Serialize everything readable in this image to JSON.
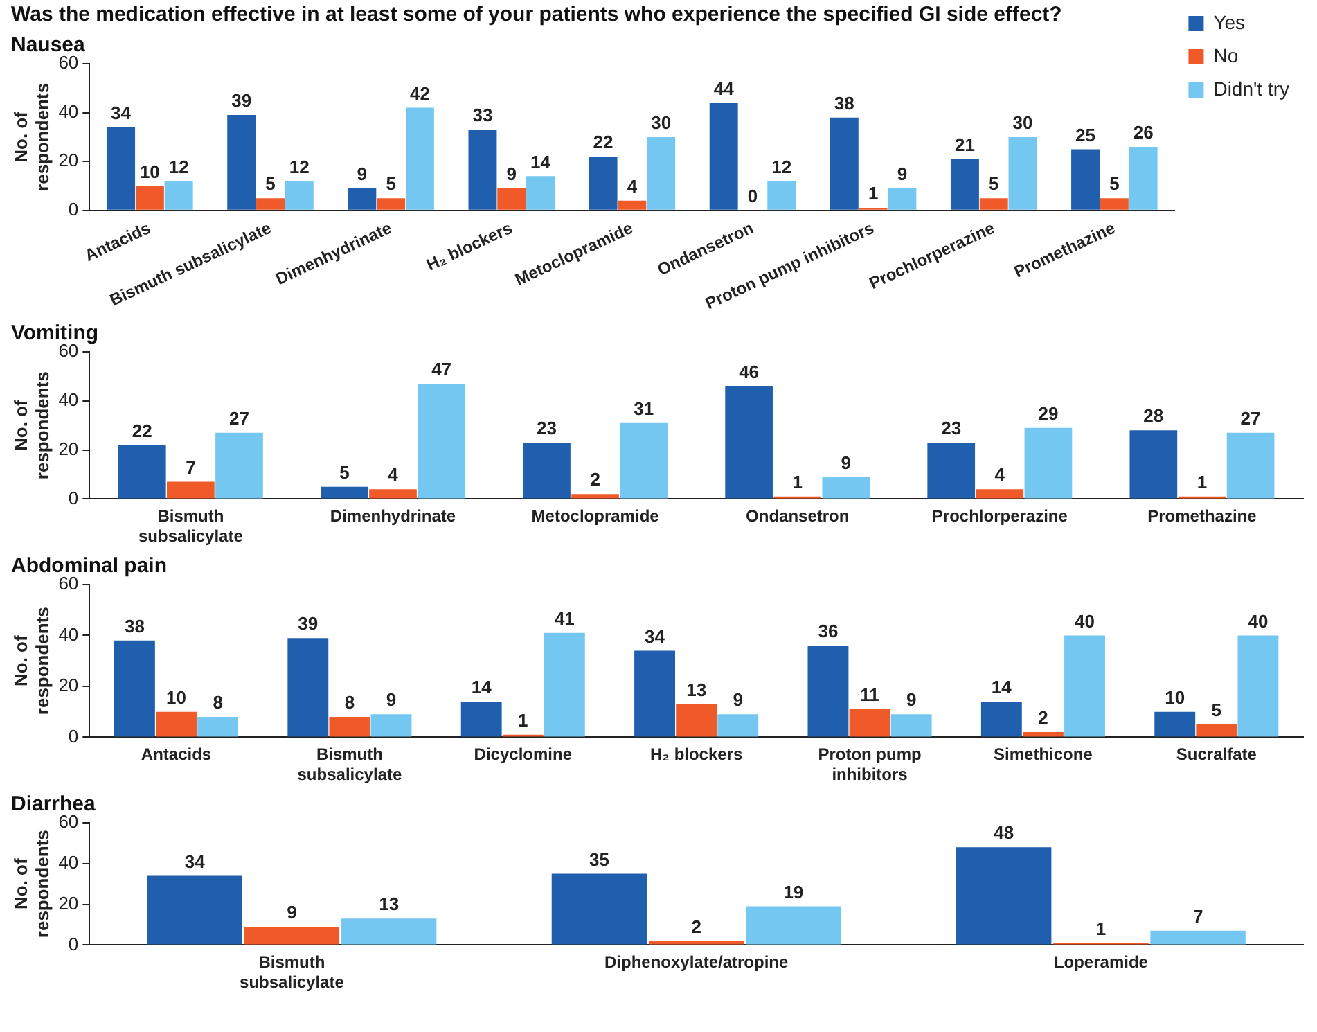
{
  "chart_data": [
    {
      "type": "bar",
      "title": "Was the medication effective in at least some of your patients who experience the specified GI side effect?",
      "subtitle": "Nausea",
      "ylabel": "No. of respondents",
      "categories": [
        "Antacids",
        "Bismuth subsalicylate",
        "Dimenhydrinate",
        "H₂ blockers",
        "Metoclopramide",
        "Ondansetron",
        "Proton pump inhibitors",
        "Prochlorperazine",
        "Promethazine"
      ],
      "series": [
        {
          "name": "Yes",
          "color": "#1f5fad",
          "values": [
            34,
            39,
            9,
            33,
            22,
            44,
            38,
            21,
            25
          ]
        },
        {
          "name": "No",
          "color": "#f05a28",
          "values": [
            10,
            5,
            5,
            9,
            4,
            0,
            1,
            5,
            5
          ]
        },
        {
          "name": "Didn't try",
          "color": "#74c7f0",
          "values": [
            12,
            12,
            42,
            14,
            30,
            12,
            9,
            30,
            26
          ]
        }
      ],
      "ylim": [
        0,
        60
      ],
      "yticks": [
        0,
        20,
        40,
        60
      ],
      "grid": false,
      "legend": "top right",
      "data_labels": true
    },
    {
      "type": "bar",
      "title": "Vomiting",
      "ylabel": "No. of respondents",
      "categories": [
        "Bismuth subsalicylate",
        "Dimenhydrinate",
        "Metoclopramide",
        "Ondansetron",
        "Prochlorperazine",
        "Promethazine"
      ],
      "series": [
        {
          "color": "#1f5fad",
          "values": [
            22,
            5,
            23,
            46,
            23,
            28
          ]
        },
        {
          "color": "#f05a28",
          "values": [
            7,
            4,
            2,
            1,
            4,
            1
          ]
        },
        {
          "color": "#74c7f0",
          "values": [
            27,
            47,
            31,
            9,
            29,
            27
          ]
        }
      ],
      "ylim": [
        0,
        60
      ],
      "yticks": [
        0,
        20,
        40,
        60
      ],
      "grid": false,
      "data_labels": true
    },
    {
      "type": "bar",
      "title": "Abdominal pain",
      "ylabel": "No. of respondents",
      "categories": [
        "Antacids",
        "Bismuth subsalicylate",
        "Dicyclomine",
        "H₂ blockers",
        "Proton pump inhibitors",
        "Simethicone",
        "Sucralfate"
      ],
      "series": [
        {
          "color": "#1f5fad",
          "values": [
            38,
            39,
            14,
            34,
            36,
            14,
            10
          ]
        },
        {
          "color": "#f05a28",
          "values": [
            10,
            8,
            1,
            13,
            11,
            2,
            5
          ]
        },
        {
          "color": "#74c7f0",
          "values": [
            8,
            9,
            41,
            9,
            9,
            40,
            40
          ]
        }
      ],
      "ylim": [
        0,
        60
      ],
      "yticks": [
        0,
        20,
        40,
        60
      ],
      "grid": false,
      "data_labels": true
    },
    {
      "type": "bar",
      "title": "Diarrhea",
      "ylabel": "No. of respondents",
      "categories": [
        "Bismuth subsalicylate",
        "Diphenoxylate/atropine",
        "Loperamide"
      ],
      "series": [
        {
          "color": "#1f5fad",
          "values": [
            34,
            35,
            48
          ]
        },
        {
          "color": "#f05a28",
          "values": [
            9,
            2,
            1
          ]
        },
        {
          "color": "#74c7f0",
          "values": [
            13,
            19,
            7
          ]
        }
      ],
      "ylim": [
        0,
        60
      ],
      "yticks": [
        0,
        20,
        40,
        60
      ],
      "grid": false,
      "data_labels": true
    }
  ]
}
